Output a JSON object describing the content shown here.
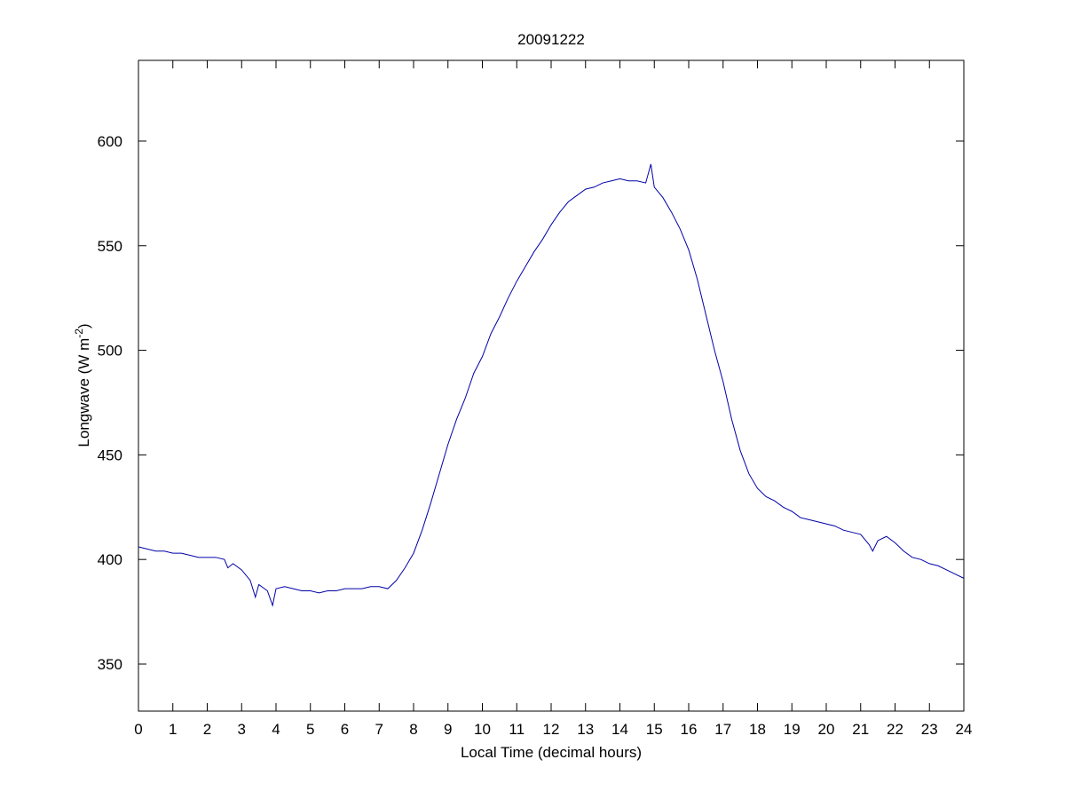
{
  "chart_data": {
    "type": "line",
    "title": "20091222",
    "x_label": "Local Time (decimal hours)",
    "y_label": [
      "Longwave (W m",
      "-2",
      ")"
    ],
    "xlim": [
      0,
      24
    ],
    "xticks": [
      0,
      1,
      2,
      3,
      4,
      5,
      6,
      7,
      8,
      9,
      10,
      11,
      12,
      13,
      14,
      15,
      16,
      17,
      18,
      19,
      20,
      21,
      22,
      23,
      24
    ],
    "ylim": [
      327.5,
      638.6
    ],
    "yticks": [
      350,
      400,
      450,
      500,
      550,
      600
    ],
    "grid": false,
    "series": [
      {
        "color": "#0000a8",
        "x": [
          0,
          0.25,
          0.5,
          0.75,
          1,
          1.25,
          1.5,
          1.75,
          2,
          2.25,
          2.5,
          2.6,
          2.75,
          3,
          3.25,
          3.4,
          3.5,
          3.75,
          3.9,
          4,
          4.25,
          4.5,
          4.75,
          5,
          5.25,
          5.5,
          5.75,
          6,
          6.25,
          6.5,
          6.75,
          7,
          7.25,
          7.5,
          7.75,
          8,
          8.25,
          8.5,
          8.75,
          9,
          9.25,
          9.5,
          9.75,
          10,
          10.25,
          10.5,
          10.75,
          11,
          11.25,
          11.5,
          11.75,
          12,
          12.25,
          12.5,
          12.75,
          13,
          13.25,
          13.5,
          13.75,
          14,
          14.25,
          14.5,
          14.75,
          14.9,
          15,
          15.25,
          15.5,
          15.75,
          16,
          16.25,
          16.5,
          16.75,
          17,
          17.25,
          17.5,
          17.75,
          18,
          18.25,
          18.5,
          18.75,
          19,
          19.25,
          19.5,
          19.75,
          20,
          20.25,
          20.5,
          20.75,
          21,
          21.25,
          21.35,
          21.5,
          21.75,
          22,
          22.25,
          22.5,
          22.75,
          23,
          23.25,
          23.5,
          23.75,
          24
        ],
        "values": [
          406,
          405,
          404,
          404,
          403,
          403,
          402,
          401,
          401,
          401,
          400,
          396,
          398,
          395,
          390,
          382,
          388,
          385,
          378,
          386,
          387,
          386,
          385,
          385,
          384,
          385,
          385,
          386,
          386,
          386,
          387,
          387,
          386,
          390,
          396,
          403,
          414,
          427,
          441,
          455,
          467,
          477,
          489,
          497,
          508,
          516,
          525,
          533,
          540,
          547,
          553,
          560,
          566,
          571,
          574,
          577,
          578,
          580,
          581,
          582,
          581,
          581,
          580,
          589,
          578,
          573,
          566,
          558,
          548,
          534,
          517,
          500,
          485,
          467,
          452,
          441,
          434,
          430,
          428,
          425,
          423,
          420,
          419,
          418,
          417,
          416,
          414,
          413,
          412,
          407,
          404,
          409,
          411,
          408,
          404,
          401,
          400,
          398,
          397,
          395,
          393,
          391
        ]
      }
    ]
  }
}
